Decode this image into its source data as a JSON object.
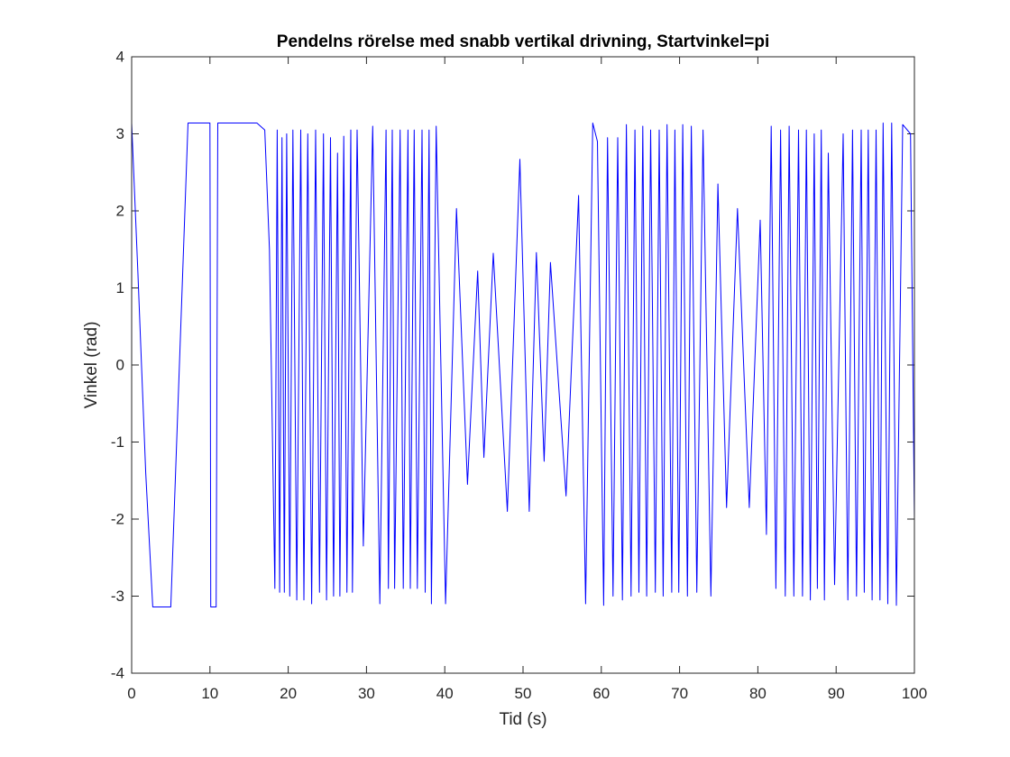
{
  "chart_data": {
    "type": "line",
    "title": "Pendelns rörelse med snabb vertikal drivning, Startvinkel=pi",
    "xlabel": "Tid (s)",
    "ylabel": "Vinkel (rad)",
    "xlim": [
      0,
      100
    ],
    "ylim": [
      -4,
      4
    ],
    "xticks": [
      0,
      10,
      20,
      30,
      40,
      50,
      60,
      70,
      80,
      90,
      100
    ],
    "yticks": [
      -4,
      -3,
      -2,
      -1,
      0,
      1,
      2,
      3,
      4
    ],
    "xtick_labels": [
      "0",
      "10",
      "20",
      "30",
      "40",
      "50",
      "60",
      "70",
      "80",
      "90",
      "100"
    ],
    "ytick_labels": [
      "-4",
      "-3",
      "-2",
      "-1",
      "0",
      "1",
      "2",
      "3",
      "4"
    ],
    "grid": false,
    "colors": {
      "line": "#0000ff",
      "axes": "#262626"
    },
    "series": [
      {
        "x": [
          0,
          0.8,
          1.8,
          2.7,
          4.9,
          5.0,
          7.2,
          7.5,
          10.0,
          10.1,
          10.5,
          10.8,
          11.0,
          11.5,
          12.0,
          16.0,
          17.0,
          17.6,
          18.3,
          18.6,
          18.9,
          19.2,
          19.5,
          19.8,
          20.2,
          20.6,
          21.1,
          21.6,
          22.0,
          22.5,
          23.0,
          23.5,
          24.0,
          24.5,
          24.9,
          25.4,
          25.8,
          26.3,
          26.6,
          27.1,
          27.5,
          28.0,
          28.2,
          28.8,
          29.6,
          30.8,
          31.7,
          32.5,
          32.8,
          33.3,
          33.6,
          34.3,
          34.7,
          35.3,
          35.6,
          36.1,
          36.5,
          37.1,
          37.5,
          38.0,
          38.3,
          38.9,
          40.1,
          41.5,
          42.9,
          44.2,
          45.0,
          46.2,
          48.0,
          49.6,
          50.8,
          51.7,
          52.7,
          53.5,
          55.5,
          57.1,
          58.0,
          58.9,
          59.5,
          60.3,
          60.8,
          61.5,
          62.1,
          62.7,
          63.2,
          63.8,
          64.3,
          64.8,
          65.3,
          65.8,
          66.3,
          66.9,
          67.4,
          67.9,
          68.4,
          69.0,
          69.4,
          69.9,
          70.4,
          71.0,
          71.5,
          72.2,
          73.0,
          74.0,
          74.9,
          76.0,
          77.4,
          78.9,
          80.3,
          81.1,
          81.7,
          82.3,
          82.9,
          83.5,
          84.0,
          84.6,
          85.2,
          85.7,
          86.2,
          86.7,
          87.2,
          87.6,
          88.1,
          88.5,
          89.0,
          89.8,
          90.9,
          91.5,
          92.1,
          92.6,
          93.2,
          93.6,
          94.1,
          94.6,
          95.1,
          95.6,
          96.0,
          96.6,
          97.1,
          97.7,
          98.5,
          99.5,
          100.0
        ],
        "y": [
          3.14,
          1.2,
          -1.4,
          -3.14,
          -3.14,
          -3.14,
          3.14,
          3.14,
          3.14,
          -3.14,
          -3.14,
          -3.14,
          3.14,
          3.14,
          3.14,
          3.14,
          3.05,
          1.5,
          -2.9,
          3.05,
          -2.95,
          2.95,
          -2.95,
          3.0,
          -3.0,
          3.05,
          -3.05,
          3.05,
          -3.05,
          3.0,
          -3.1,
          3.05,
          -2.95,
          3.0,
          -3.05,
          2.95,
          -3.0,
          2.75,
          -3.0,
          2.97,
          -2.95,
          3.05,
          -2.95,
          3.05,
          -2.35,
          3.1,
          -3.1,
          3.05,
          -2.9,
          3.05,
          -2.9,
          3.05,
          -2.9,
          3.05,
          -2.9,
          3.05,
          -2.9,
          3.05,
          -2.95,
          3.05,
          -3.1,
          3.1,
          -3.1,
          2.03,
          -1.55,
          1.22,
          -1.2,
          1.45,
          -1.9,
          2.67,
          -1.9,
          1.46,
          -1.25,
          1.33,
          -1.7,
          2.2,
          -3.1,
          3.14,
          2.9,
          -3.12,
          2.95,
          -3.0,
          2.95,
          -3.05,
          3.12,
          -3.0,
          3.05,
          -2.95,
          3.1,
          -3.0,
          3.05,
          -2.95,
          3.05,
          -3.0,
          3.12,
          -2.95,
          3.05,
          -2.95,
          3.12,
          -3.0,
          3.1,
          -2.95,
          3.05,
          -3.0,
          2.35,
          -1.85,
          2.03,
          -1.85,
          1.88,
          -2.2,
          3.1,
          -2.9,
          3.05,
          -3.0,
          3.1,
          -3.0,
          3.05,
          -3.0,
          3.05,
          -3.05,
          3.0,
          -2.9,
          3.05,
          -3.05,
          2.75,
          -2.85,
          3.0,
          -3.05,
          3.05,
          -3.0,
          3.05,
          -2.95,
          3.05,
          -3.05,
          3.05,
          -3.05,
          3.14,
          -3.1,
          3.14,
          -3.12,
          3.12,
          3.0,
          -2.0
        ]
      }
    ]
  }
}
